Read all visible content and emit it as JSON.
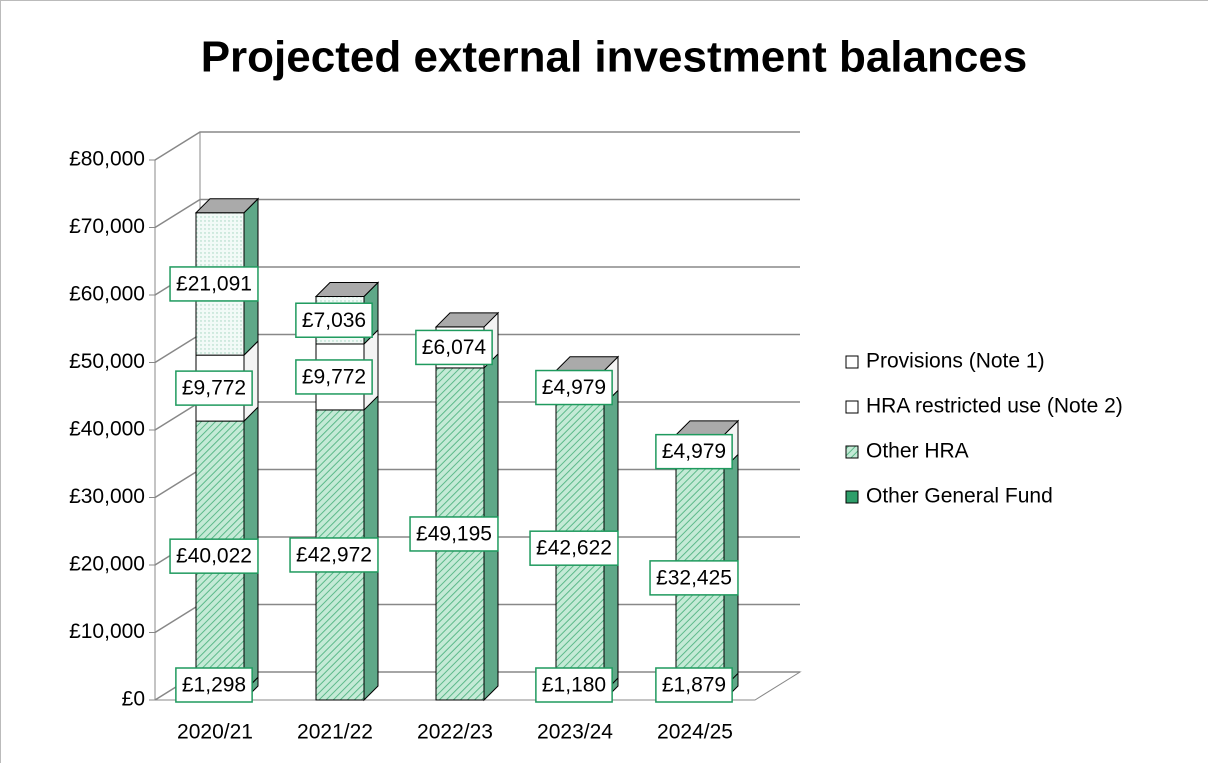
{
  "chart_data": {
    "type": "bar3d_stacked",
    "title": "Projected external investment balances",
    "categories": [
      "2020/21",
      "2021/22",
      "2022/23",
      "2023/24",
      "2024/25"
    ],
    "series": [
      {
        "name": "Other General Fund",
        "color": "#2e9e6a",
        "pattern": "solid",
        "values": [
          1298,
          null,
          null,
          1180,
          1879
        ],
        "value_labels": [
          "£1,298",
          null,
          null,
          "£1,180",
          "£1,879"
        ]
      },
      {
        "name": "Other HRA",
        "color": "#8fd3b0",
        "pattern": "hatch",
        "values": [
          40022,
          42972,
          49195,
          42622,
          32425
        ],
        "value_labels": [
          "£40,022",
          "£42,972",
          "£49,195",
          "£42,622",
          "£32,425"
        ]
      },
      {
        "name": "HRA restricted use (Note 2)",
        "color": "#ffffff",
        "pattern": "solid",
        "values": [
          9772,
          9772,
          6074,
          4979,
          4979
        ],
        "value_labels": [
          "£9,772",
          "£9,772",
          "£6,074",
          "£4,979",
          "£4,979"
        ]
      },
      {
        "name": "Provisions (Note 1)",
        "color": "#eef8f4",
        "pattern": "dots",
        "values": [
          21091,
          7036,
          null,
          null,
          null
        ],
        "value_labels": [
          "£21,091",
          "£7,036",
          null,
          null,
          null
        ]
      }
    ],
    "ylim": [
      0,
      80000
    ],
    "yticks": [
      {
        "value": 0,
        "label": "£0"
      },
      {
        "value": 10000,
        "label": "£10,000"
      },
      {
        "value": 20000,
        "label": "£20,000"
      },
      {
        "value": 30000,
        "label": "£30,000"
      },
      {
        "value": 40000,
        "label": "£40,000"
      },
      {
        "value": 50000,
        "label": "£50,000"
      },
      {
        "value": 60000,
        "label": "£60,000"
      },
      {
        "value": 70000,
        "label": "£70,000"
      },
      {
        "value": 80000,
        "label": "£80,000"
      }
    ],
    "grid": true,
    "legend": "right"
  }
}
